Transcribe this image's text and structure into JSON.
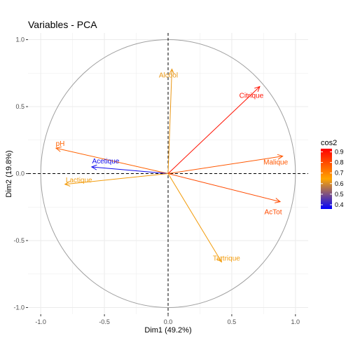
{
  "chart_data": {
    "type": "scatter",
    "title": "Variables - PCA",
    "xlabel": "Dim1 (49.2%)",
    "ylabel": "Dim2 (19.8%)",
    "xlim": [
      -1.1,
      1.1
    ],
    "ylim": [
      -1.05,
      1.05
    ],
    "x_ticks": [
      -1.0,
      -0.5,
      0.0,
      0.5,
      1.0
    ],
    "x_tick_labels": [
      "-1.0",
      "-0.5",
      "0.0",
      "0.5",
      "1.0"
    ],
    "y_ticks": [
      -1.0,
      -0.5,
      0.0,
      0.5,
      1.0
    ],
    "y_tick_labels": [
      "-1.0",
      "-0.5",
      "0.0",
      "0.5",
      "1.0"
    ],
    "grid": true,
    "correlation_circle": true,
    "series": [
      {
        "name": "Alcool",
        "x": 0.03,
        "y": 0.78,
        "cos2": 0.62
      },
      {
        "name": "Citrique",
        "x": 0.72,
        "y": 0.65,
        "cos2": 0.9
      },
      {
        "name": "pH",
        "x": -0.88,
        "y": 0.19,
        "cos2": 0.76
      },
      {
        "name": "Malique",
        "x": 0.9,
        "y": 0.13,
        "cos2": 0.78
      },
      {
        "name": "Acetique",
        "x": -0.6,
        "y": 0.05,
        "cos2": 0.38
      },
      {
        "name": "Lactique",
        "x": -0.81,
        "y": -0.08,
        "cos2": 0.63
      },
      {
        "name": "AcTot",
        "x": 0.88,
        "y": -0.21,
        "cos2": 0.8
      },
      {
        "name": "Tartrique",
        "x": 0.42,
        "y": -0.66,
        "cos2": 0.63
      }
    ],
    "legend": {
      "title": "cos2",
      "placement": "right",
      "min": 0.36,
      "max": 0.93,
      "ticks": [
        0.4,
        0.5,
        0.6,
        0.7,
        0.8,
        0.9
      ],
      "tick_labels": [
        "0.4",
        "0.5",
        "0.6",
        "0.7",
        "0.8",
        "0.9"
      ],
      "gradient_colors": [
        "#0000FF",
        "#FFA500",
        "#FF0000"
      ]
    },
    "colors": {
      "grid": "#EBEBEB",
      "axis_text": "#4D4D4D",
      "circle": "#A0A0A0",
      "zero_lines": "#000000"
    }
  }
}
